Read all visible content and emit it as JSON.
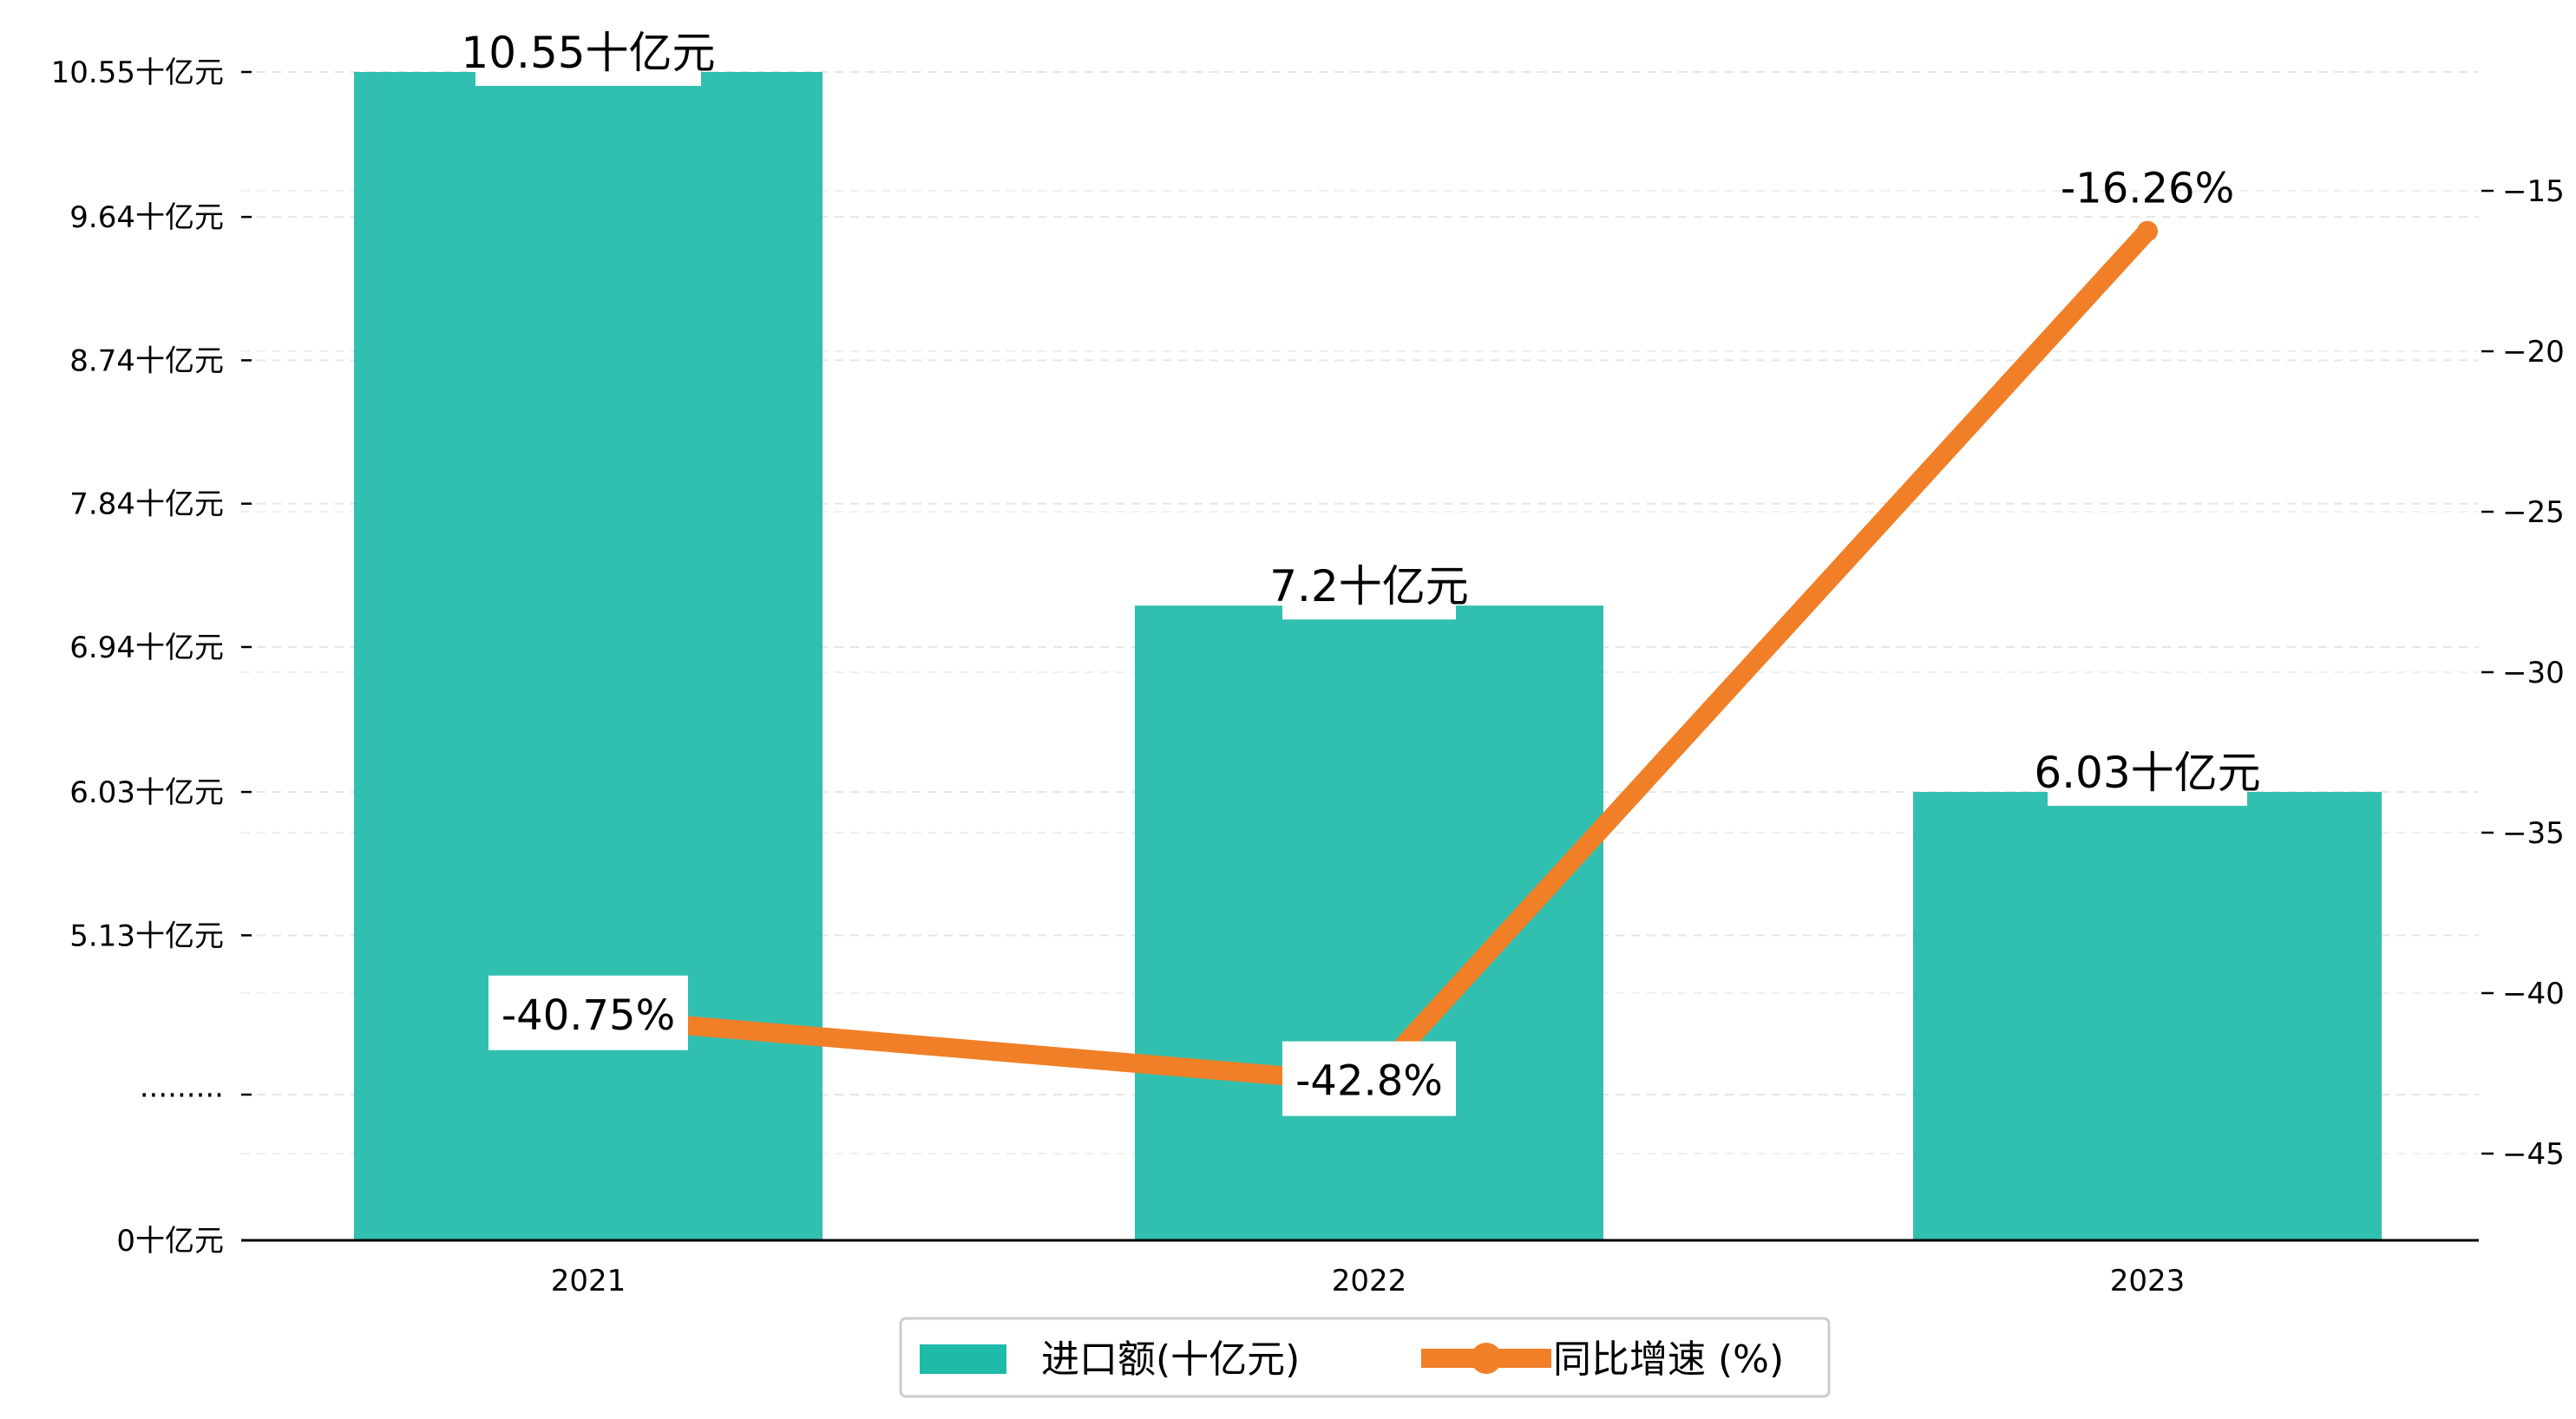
{
  "chart_data": {
    "type": "bar",
    "categories": [
      "2021",
      "2022",
      "2023"
    ],
    "series": [
      {
        "name": "进口额(十亿元)",
        "type": "bar",
        "axis": "left",
        "color": "#1fbaa8",
        "values": [
          10.55,
          7.2,
          6.03
        ],
        "labels": [
          "10.55十亿元",
          "7.2十亿元",
          "6.03十亿元"
        ]
      },
      {
        "name": "同比增速 (%)",
        "type": "line",
        "axis": "right",
        "color": "#f07f27",
        "values": [
          -40.75,
          -42.8,
          -16.26
        ],
        "labels": [
          "-40.75%",
          "-42.8%",
          "-16.26%"
        ]
      }
    ],
    "left_axis": {
      "ticks": [
        {
          "value": 0,
          "label": "0十亿元"
        },
        {
          "value": 4.13,
          "label": "·········"
        },
        {
          "value": 5.13,
          "label": "5.13十亿元"
        },
        {
          "value": 6.03,
          "label": "6.03十亿元"
        },
        {
          "value": 6.94,
          "label": "6.94十亿元"
        },
        {
          "value": 7.84,
          "label": "7.84十亿元"
        },
        {
          "value": 8.74,
          "label": "8.74十亿元"
        },
        {
          "value": 9.64,
          "label": "9.64十亿元"
        },
        {
          "value": 10.55,
          "label": "10.55十亿元"
        }
      ],
      "note": "axis break between 0 and the dotted tick"
    },
    "right_axis": {
      "ticks": [
        -45,
        -40,
        -35,
        -30,
        -25,
        -20,
        -15
      ],
      "tick_labels": [
        "−45",
        "−40",
        "−35",
        "−30",
        "−25",
        "−20",
        "−15"
      ],
      "ylim": [
        -48.2,
        -12.2
      ]
    },
    "grid": "horizontal dashed",
    "legend": {
      "position": "bottom-center"
    },
    "title": "",
    "xlabel": "",
    "ylabel": ""
  }
}
